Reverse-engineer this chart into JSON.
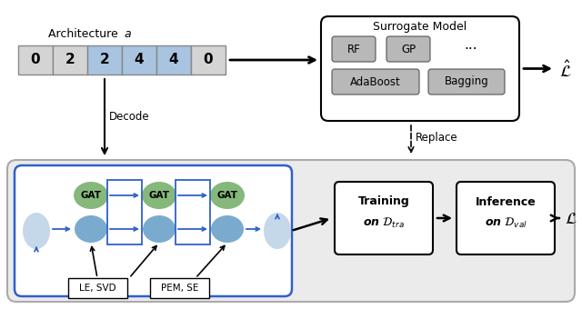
{
  "arch_values": [
    "0",
    "2",
    "2",
    "4",
    "4",
    "0"
  ],
  "arch_colors": [
    "#d4d4d4",
    "#d4d4d4",
    "#a8c4e0",
    "#a8c4e0",
    "#a8c4e0",
    "#d4d4d4"
  ],
  "gat_color": "#85b87a",
  "node_color": "#7aabcf",
  "input_node_color": "#c5d8ea",
  "bg_color": "#ebebeb",
  "blue_arrow": "#3060cc",
  "sm_gray": "#b8b8b8"
}
